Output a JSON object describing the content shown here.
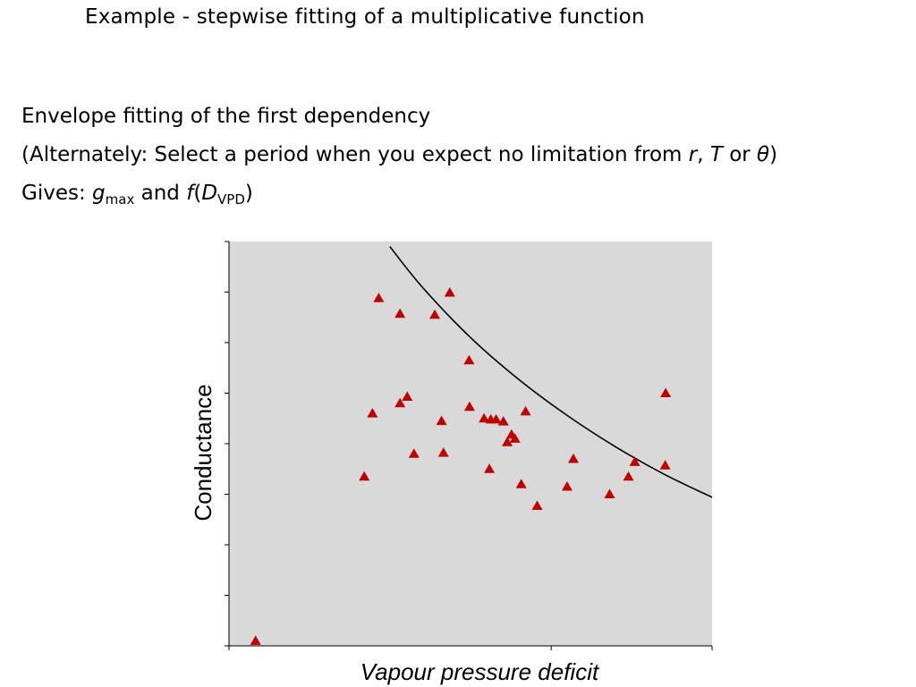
{
  "slide": {
    "title": "Example - stepwise fitting of a multiplicative function",
    "line1": "Envelope fitting of the first dependency",
    "line2_start": "(Alternately: Select a period when you expect no limitation from ",
    "line2_r": "r",
    "line2_sep1": ", ",
    "line2_T": "T",
    "line2_sep2": " or ",
    "line2_theta": "θ",
    "line2_end": ")",
    "line3_start": "Gives: ",
    "line3_g": "g",
    "line3_gsub": "max",
    "line3_and": " and ",
    "line3_f": "f",
    "line3_paren": "(",
    "line3_D": "D",
    "line3_Dsub": "VPD",
    "line3_end": ")"
  },
  "chart_data": {
    "type": "scatter",
    "xlabel": "Vapour pressure deficit",
    "ylabel": "Conductance",
    "xlim": [
      0,
      10
    ],
    "ylim": [
      0,
      8
    ],
    "x_ticks": [
      0,
      6.67,
      10
    ],
    "y_ticks": [
      0,
      1,
      2,
      3,
      4,
      5,
      6,
      7,
      8
    ],
    "grid": false,
    "background_color": "#d9d9d9",
    "marker_color": "#c00000",
    "marker": "triangle",
    "points": [
      {
        "x": 0.55,
        "y": 0.1
      },
      {
        "x": 2.8,
        "y": 3.35
      },
      {
        "x": 2.97,
        "y": 4.6
      },
      {
        "x": 3.1,
        "y": 6.88
      },
      {
        "x": 3.54,
        "y": 4.8
      },
      {
        "x": 3.54,
        "y": 6.57
      },
      {
        "x": 3.69,
        "y": 4.93
      },
      {
        "x": 3.83,
        "y": 3.8
      },
      {
        "x": 4.26,
        "y": 6.55
      },
      {
        "x": 4.4,
        "y": 4.45
      },
      {
        "x": 4.44,
        "y": 3.82
      },
      {
        "x": 4.57,
        "y": 6.99
      },
      {
        "x": 4.97,
        "y": 5.65
      },
      {
        "x": 4.98,
        "y": 4.73
      },
      {
        "x": 5.28,
        "y": 4.5
      },
      {
        "x": 5.39,
        "y": 3.5
      },
      {
        "x": 5.42,
        "y": 4.48
      },
      {
        "x": 5.53,
        "y": 4.48
      },
      {
        "x": 5.68,
        "y": 4.44
      },
      {
        "x": 5.76,
        "y": 4.03
      },
      {
        "x": 5.85,
        "y": 4.18
      },
      {
        "x": 5.92,
        "y": 4.1
      },
      {
        "x": 6.05,
        "y": 3.2
      },
      {
        "x": 6.14,
        "y": 4.64
      },
      {
        "x": 6.38,
        "y": 2.77
      },
      {
        "x": 7.0,
        "y": 3.15
      },
      {
        "x": 7.13,
        "y": 3.7
      },
      {
        "x": 7.88,
        "y": 3.0
      },
      {
        "x": 8.27,
        "y": 3.35
      },
      {
        "x": 8.4,
        "y": 3.64
      },
      {
        "x": 9.03,
        "y": 3.57
      },
      {
        "x": 9.04,
        "y": 5.0
      }
    ],
    "envelope_curve": [
      {
        "x": 3.33,
        "y": 7.9
      },
      {
        "x": 4.0,
        "y": 7.1
      },
      {
        "x": 5.0,
        "y": 6.1
      },
      {
        "x": 6.0,
        "y": 5.27
      },
      {
        "x": 7.0,
        "y": 4.56
      },
      {
        "x": 8.0,
        "y": 3.94
      },
      {
        "x": 9.0,
        "y": 3.4
      },
      {
        "x": 10.0,
        "y": 2.94
      }
    ]
  }
}
